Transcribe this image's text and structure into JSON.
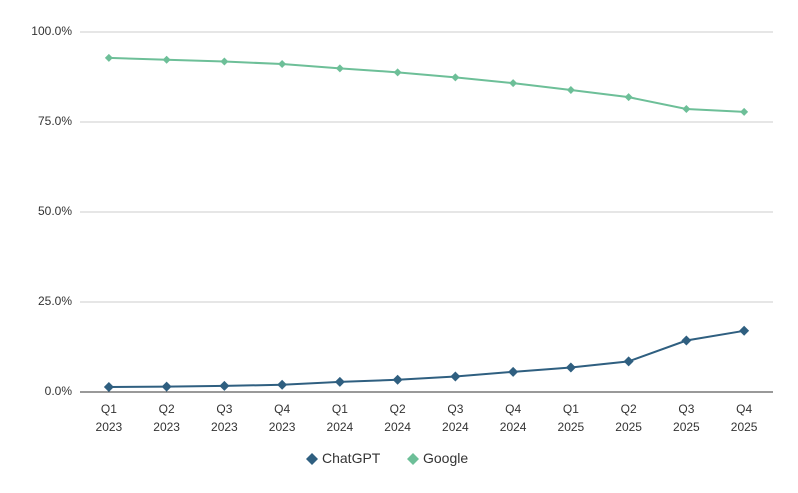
{
  "chart_data": {
    "type": "line",
    "categories": [
      "Q1\n2023",
      "Q2\n2023",
      "Q3\n2023",
      "Q4\n2023",
      "Q1\n2024",
      "Q2\n2024",
      "Q3\n2024",
      "Q4\n2024",
      "Q1\n2025",
      "Q2\n2025",
      "Q3\n2025",
      "Q4\n2025"
    ],
    "series": [
      {
        "name": "ChatGPT",
        "color": "#2f5f80",
        "values": [
          1.4,
          1.5,
          1.7,
          2.0,
          2.8,
          3.4,
          4.3,
          5.6,
          6.8,
          8.5,
          14.3,
          17.0
        ]
      },
      {
        "name": "Google",
        "color": "#6dbf98",
        "values": [
          92.8,
          92.3,
          91.8,
          91.1,
          89.9,
          88.8,
          87.4,
          85.8,
          83.9,
          81.9,
          78.6,
          77.8
        ]
      }
    ],
    "ylim": [
      0,
      100
    ],
    "yticks": [
      {
        "value": 0,
        "label": "0.0%"
      },
      {
        "value": 25,
        "label": "25.0%"
      },
      {
        "value": 50,
        "label": "50.0%"
      },
      {
        "value": 75,
        "label": "75.0%"
      },
      {
        "value": 100,
        "label": "100.0%"
      }
    ],
    "grid": true,
    "legend": "bottom"
  }
}
